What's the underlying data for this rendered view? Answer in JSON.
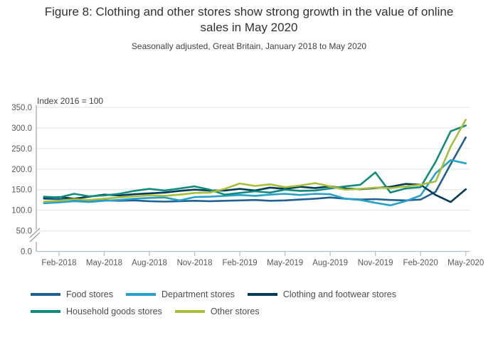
{
  "title": "Figure 8: Clothing and other stores show strong growth in the value of online sales in May 2020",
  "subtitle": "Seasonally adjusted, Great Britain, January 2018 to May 2020",
  "chart_data": {
    "type": "line",
    "axis_note": "Index 2016 = 100",
    "x": [
      "Jan-2018",
      "Feb-2018",
      "Mar-2018",
      "Apr-2018",
      "May-2018",
      "Jun-2018",
      "Jul-2018",
      "Aug-2018",
      "Sep-2018",
      "Oct-2018",
      "Nov-2018",
      "Dec-2018",
      "Jan-2019",
      "Feb-2019",
      "Mar-2019",
      "Apr-2019",
      "May-2019",
      "Jun-2019",
      "Jul-2019",
      "Aug-2019",
      "Sep-2019",
      "Oct-2019",
      "Nov-2019",
      "Dec-2019",
      "Jan-2020",
      "Feb-2020",
      "Mar-2020",
      "Apr-2020",
      "May-2020"
    ],
    "x_tick_labels": [
      "Feb-2018",
      "May-2018",
      "Aug-2018",
      "Nov-2018",
      "Feb-2019",
      "May-2019",
      "Aug-2019",
      "Nov-2019",
      "Feb-2020",
      "May-2020"
    ],
    "y_tick_labels": [
      "0.0",
      "50.0",
      "100.0",
      "150.0",
      "200.0",
      "250.0",
      "300.0",
      "350.0"
    ],
    "ylim": [
      0,
      350
    ],
    "grid": true,
    "axis_break": true,
    "legend_position": "bottom",
    "series": [
      {
        "name": "Food stores",
        "color": "#206095",
        "values": [
          128,
          127,
          125,
          123,
          124,
          123,
          124,
          122,
          121,
          122,
          123,
          122,
          123,
          124,
          125,
          123,
          124,
          126,
          128,
          131,
          128,
          126,
          127,
          125,
          124,
          126,
          145,
          212,
          277
        ]
      },
      {
        "name": "Department stores",
        "color": "#27a0cc",
        "values": [
          117,
          119,
          122,
          120,
          123,
          125,
          128,
          130,
          131,
          124,
          132,
          133,
          135,
          137,
          135,
          138,
          140,
          137,
          140,
          139,
          128,
          125,
          118,
          112,
          122,
          136,
          190,
          222,
          214
        ]
      },
      {
        "name": "Clothing and footwear stores",
        "color": "#003c57",
        "values": [
          130,
          132,
          128,
          133,
          138,
          136,
          139,
          141,
          143,
          147,
          150,
          148,
          148,
          152,
          148,
          155,
          152,
          157,
          154,
          158,
          153,
          151,
          154,
          157,
          164,
          162,
          137,
          120,
          151
        ]
      },
      {
        "name": "Household goods stores",
        "color": "#118c7b",
        "values": [
          133,
          131,
          140,
          134,
          136,
          140,
          147,
          152,
          148,
          153,
          158,
          150,
          138,
          142,
          146,
          143,
          150,
          147,
          148,
          153,
          158,
          162,
          192,
          143,
          153,
          156,
          218,
          292,
          306
        ]
      },
      {
        "name": "Other stores",
        "color": "#a8bd3a",
        "values": [
          121,
          123,
          127,
          125,
          128,
          131,
          134,
          136,
          135,
          138,
          142,
          143,
          152,
          165,
          159,
          163,
          156,
          160,
          166,
          158,
          150,
          152,
          155,
          154,
          158,
          162,
          170,
          255,
          320
        ]
      }
    ],
    "style": {
      "grid_color": "#e3e3e3",
      "y_axis_color": "#9aa0a5",
      "x_axis_color": "#abc3d5",
      "tick_label_color": "#58595b",
      "axis_note_color": "#414042"
    }
  }
}
